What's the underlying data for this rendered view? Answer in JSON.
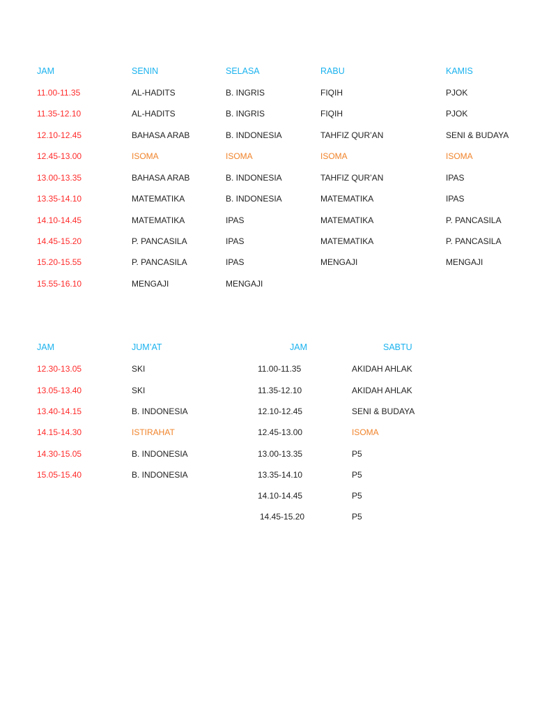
{
  "colors": {
    "header": "#1ab2ee",
    "time": "#ff2a2a",
    "break": "#f0832a",
    "text": "#222222"
  },
  "table1": {
    "headers": [
      "JAM",
      "SENIN",
      "SELASA",
      "RABU",
      "KAMIS"
    ],
    "rows": [
      [
        "11.00-11.35",
        "AL-HADITS",
        "B. INGRIS",
        "FIQIH",
        "PJOK"
      ],
      [
        "11.35-12.10",
        "AL-HADITS",
        "B. INGRIS",
        "FIQIH",
        "PJOK"
      ],
      [
        "12.10-12.45",
        "BAHASA ARAB",
        "B. INDONESIA",
        "TAHFIZ QUR’AN",
        "SENI & BUDAYA"
      ],
      [
        "12.45-13.00",
        "ISOMA",
        "ISOMA",
        "ISOMA",
        "ISOMA"
      ],
      [
        "13.00-13.35",
        "BAHASA ARAB",
        "B. INDONESIA",
        "TAHFIZ QUR’AN",
        "IPAS"
      ],
      [
        "13.35-14.10",
        "MATEMATIKA",
        "B. INDONESIA",
        "MATEMATIKA",
        "IPAS"
      ],
      [
        "14.10-14.45",
        "MATEMATIKA",
        "IPAS",
        "MATEMATIKA",
        "P. PANCASILA"
      ],
      [
        "14.45-15.20",
        "P. PANCASILA",
        "IPAS",
        "MATEMATIKA",
        "P. PANCASILA"
      ],
      [
        "15.20-15.55",
        "P. PANCASILA",
        "IPAS",
        "MENGAJI",
        "MENGAJI"
      ],
      [
        "15.55-16.10",
        "MENGAJI",
        "MENGAJI",
        "",
        ""
      ]
    ]
  },
  "table2": {
    "headers": [
      "JAM",
      "JUM’AT"
    ],
    "rows": [
      [
        "12.30-13.05",
        "SKI"
      ],
      [
        "13.05-13.40",
        "SKI"
      ],
      [
        "13.40-14.15",
        "B. INDONESIA"
      ],
      [
        "14.15-14.30",
        "ISTIRAHAT"
      ],
      [
        "14.30-15.05",
        "B. INDONESIA"
      ],
      [
        "15.05-15.40",
        "B. INDONESIA"
      ]
    ]
  },
  "table3": {
    "headers": [
      "JAM",
      "SABTU"
    ],
    "rows": [
      [
        "11.00-11.35",
        "AKIDAH AHLAK"
      ],
      [
        "11.35-12.10",
        "AKIDAH AHLAK"
      ],
      [
        "12.10-12.45",
        "SENI & BUDAYA"
      ],
      [
        "12.45-13.00",
        "ISOMA"
      ],
      [
        "13.00-13.35",
        "P5"
      ],
      [
        "13.35-14.10",
        "P5"
      ],
      [
        "14.10-14.45",
        "P5"
      ],
      [
        "14.45-15.20",
        "P5"
      ]
    ]
  }
}
